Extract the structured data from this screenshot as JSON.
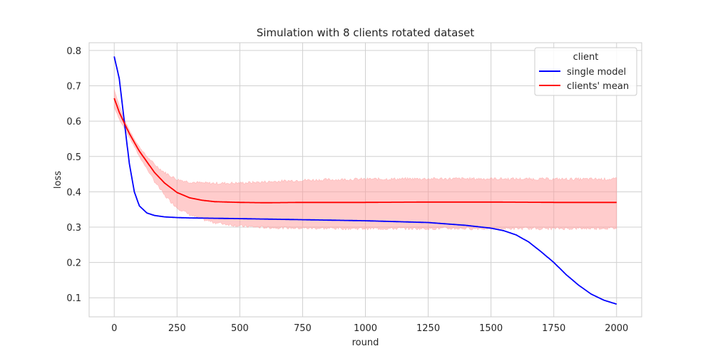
{
  "chart_data": {
    "type": "line",
    "title": "Simulation with 8 clients rotated dataset",
    "xlabel": "round",
    "ylabel": "loss",
    "xlim": [
      -100,
      2100
    ],
    "ylim": [
      0.046,
      0.822
    ],
    "xticks": [
      0,
      250,
      500,
      750,
      1000,
      1250,
      1500,
      1750,
      2000
    ],
    "yticks": [
      0.1,
      0.2,
      0.3,
      0.4,
      0.5,
      0.6,
      0.7,
      0.8
    ],
    "xtick_labels": [
      "0",
      "250",
      "500",
      "750",
      "1000",
      "1250",
      "1500",
      "1750",
      "2000"
    ],
    "ytick_labels": [
      "0.1",
      "0.2",
      "0.3",
      "0.4",
      "0.5",
      "0.6",
      "0.7",
      "0.8"
    ],
    "grid": true,
    "legend": {
      "title": "client",
      "placement": "top-right",
      "entries": [
        "single model",
        "clients' mean"
      ]
    },
    "series": [
      {
        "name": "single model",
        "color": "#0000ff",
        "x": [
          0,
          20,
          40,
          60,
          80,
          100,
          130,
          160,
          200,
          250,
          300,
          400,
          500,
          750,
          1000,
          1250,
          1400,
          1500,
          1550,
          1600,
          1650,
          1700,
          1750,
          1800,
          1850,
          1900,
          1950,
          2000
        ],
        "y": [
          0.783,
          0.72,
          0.6,
          0.48,
          0.4,
          0.36,
          0.34,
          0.333,
          0.329,
          0.327,
          0.326,
          0.325,
          0.324,
          0.321,
          0.318,
          0.313,
          0.305,
          0.297,
          0.29,
          0.278,
          0.258,
          0.23,
          0.2,
          0.165,
          0.135,
          0.11,
          0.093,
          0.082
        ]
      },
      {
        "name": "clients' mean",
        "color": "#ff0000",
        "x": [
          0,
          20,
          40,
          60,
          80,
          100,
          130,
          160,
          200,
          250,
          300,
          350,
          400,
          500,
          600,
          750,
          1000,
          1250,
          1500,
          1750,
          2000
        ],
        "y": [
          0.665,
          0.625,
          0.595,
          0.565,
          0.54,
          0.515,
          0.485,
          0.455,
          0.425,
          0.398,
          0.383,
          0.376,
          0.372,
          0.37,
          0.369,
          0.37,
          0.37,
          0.371,
          0.371,
          0.37,
          0.37
        ],
        "band": {
          "color": "#ff9999",
          "x": [
            0,
            20,
            40,
            60,
            80,
            100,
            130,
            160,
            200,
            250,
            300,
            350,
            400,
            500,
            600,
            750,
            1000,
            1250,
            1500,
            1750,
            2000
          ],
          "upper": [
            0.69,
            0.645,
            0.605,
            0.575,
            0.55,
            0.527,
            0.5,
            0.478,
            0.455,
            0.435,
            0.428,
            0.425,
            0.424,
            0.425,
            0.428,
            0.433,
            0.436,
            0.437,
            0.437,
            0.436,
            0.436
          ],
          "lower": [
            0.64,
            0.605,
            0.582,
            0.554,
            0.528,
            0.5,
            0.465,
            0.43,
            0.39,
            0.355,
            0.335,
            0.322,
            0.313,
            0.303,
            0.299,
            0.297,
            0.296,
            0.296,
            0.296,
            0.296,
            0.297
          ]
        }
      }
    ]
  }
}
